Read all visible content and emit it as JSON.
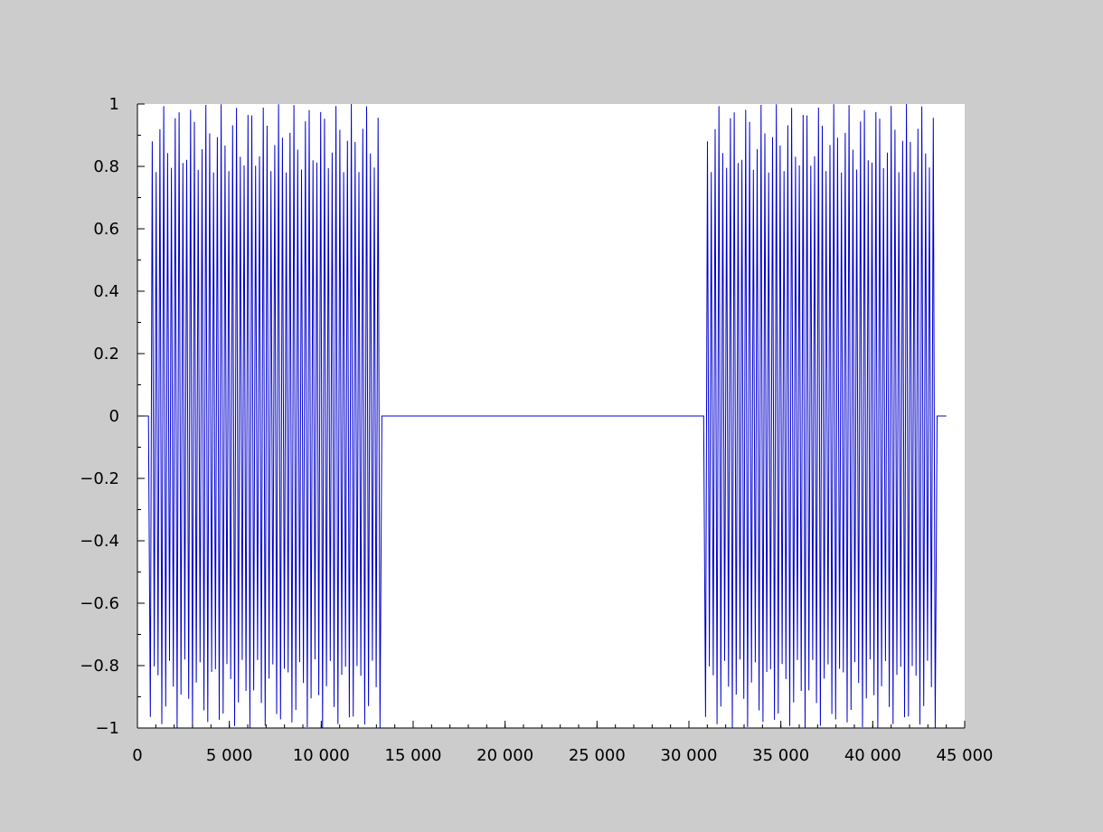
{
  "chart_data": {
    "type": "line",
    "title": "",
    "xlabel": "",
    "ylabel": "",
    "xlim": [
      0,
      45000
    ],
    "ylim": [
      -1,
      1
    ],
    "x_ticks": [
      0,
      5000,
      10000,
      15000,
      20000,
      25000,
      30000,
      35000,
      40000,
      45000
    ],
    "x_tick_labels": [
      "0",
      "5 000",
      "10 000",
      "15 000",
      "20 000",
      "25 000",
      "30 000",
      "35 000",
      "40 000",
      "45 000"
    ],
    "y_ticks": [
      1,
      0.8,
      0.6,
      0.4,
      0.2,
      0,
      -0.2,
      -0.4,
      -0.6,
      -0.8,
      -1
    ],
    "y_tick_labels": [
      "1",
      "0.8",
      "0.6",
      "0.4",
      "0.2",
      "0",
      "−0.2",
      "−0.4",
      "−0.6",
      "−0.8",
      "−1"
    ],
    "grid": false,
    "legend": "none",
    "series": [
      {
        "color": "#0000cc",
        "description_segments": [
          {
            "x_start": 0,
            "x_end": 600,
            "kind": "zero"
          },
          {
            "x_start": 600,
            "x_end": 13300,
            "kind": "oscillation",
            "cycles": 61,
            "amplitude_min": 0.78,
            "amplitude_max": 1.0
          },
          {
            "x_start": 13300,
            "x_end": 30800,
            "kind": "zero"
          },
          {
            "x_start": 30800,
            "x_end": 43500,
            "kind": "oscillation",
            "cycles": 61,
            "amplitude_min": 0.78,
            "amplitude_max": 1.0
          },
          {
            "x_start": 43500,
            "x_end": 44000,
            "kind": "zero"
          }
        ]
      }
    ]
  }
}
